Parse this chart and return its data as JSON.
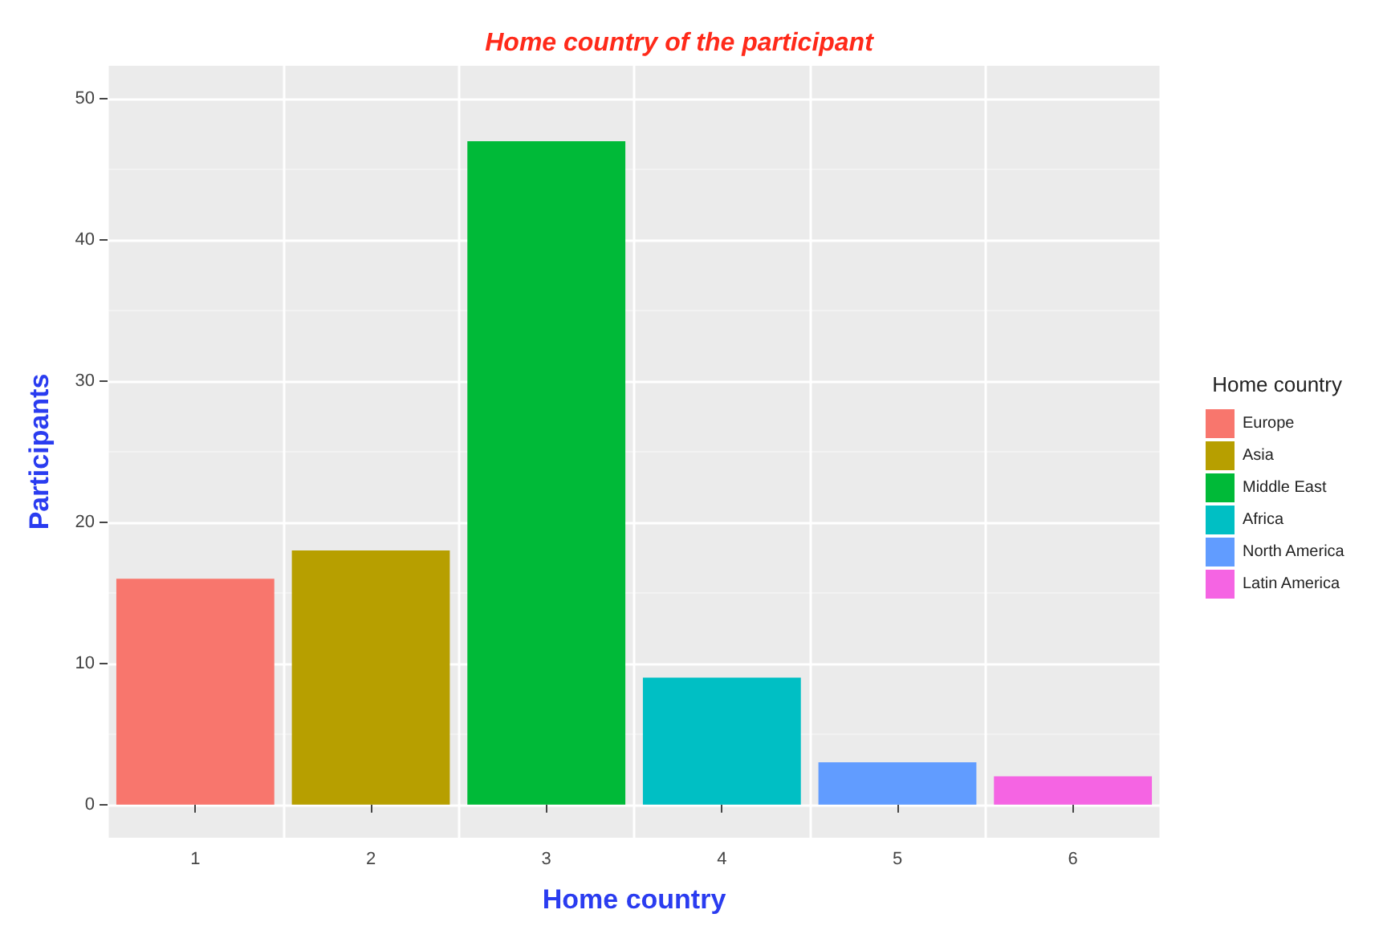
{
  "chart_data": {
    "type": "bar",
    "title": "Home country of the participant",
    "xlabel": "Home country",
    "ylabel": "Participants",
    "legend_title": "Home country",
    "categories": [
      "1",
      "2",
      "3",
      "4",
      "5",
      "6"
    ],
    "series": [
      {
        "name": "Europe",
        "color": "#f8766d",
        "values": [
          16,
          null,
          null,
          null,
          null,
          null
        ]
      },
      {
        "name": "Asia",
        "color": "#b79f00",
        "values": [
          null,
          18,
          null,
          null,
          null,
          null
        ]
      },
      {
        "name": "Middle East",
        "color": "#00ba38",
        "values": [
          null,
          null,
          47,
          null,
          null,
          null
        ]
      },
      {
        "name": "Africa",
        "color": "#00bfc4",
        "values": [
          null,
          null,
          null,
          9,
          null,
          null
        ]
      },
      {
        "name": "North America",
        "color": "#619cff",
        "values": [
          null,
          null,
          null,
          null,
          3,
          null
        ]
      },
      {
        "name": "Latin America",
        "color": "#f564e3",
        "values": [
          null,
          null,
          null,
          null,
          null,
          2
        ]
      }
    ],
    "stacked": true,
    "ylim": [
      -2.35,
      52.35
    ],
    "yticks": [
      0,
      10,
      20,
      30,
      40,
      50
    ],
    "grid": true,
    "legend": "right"
  }
}
